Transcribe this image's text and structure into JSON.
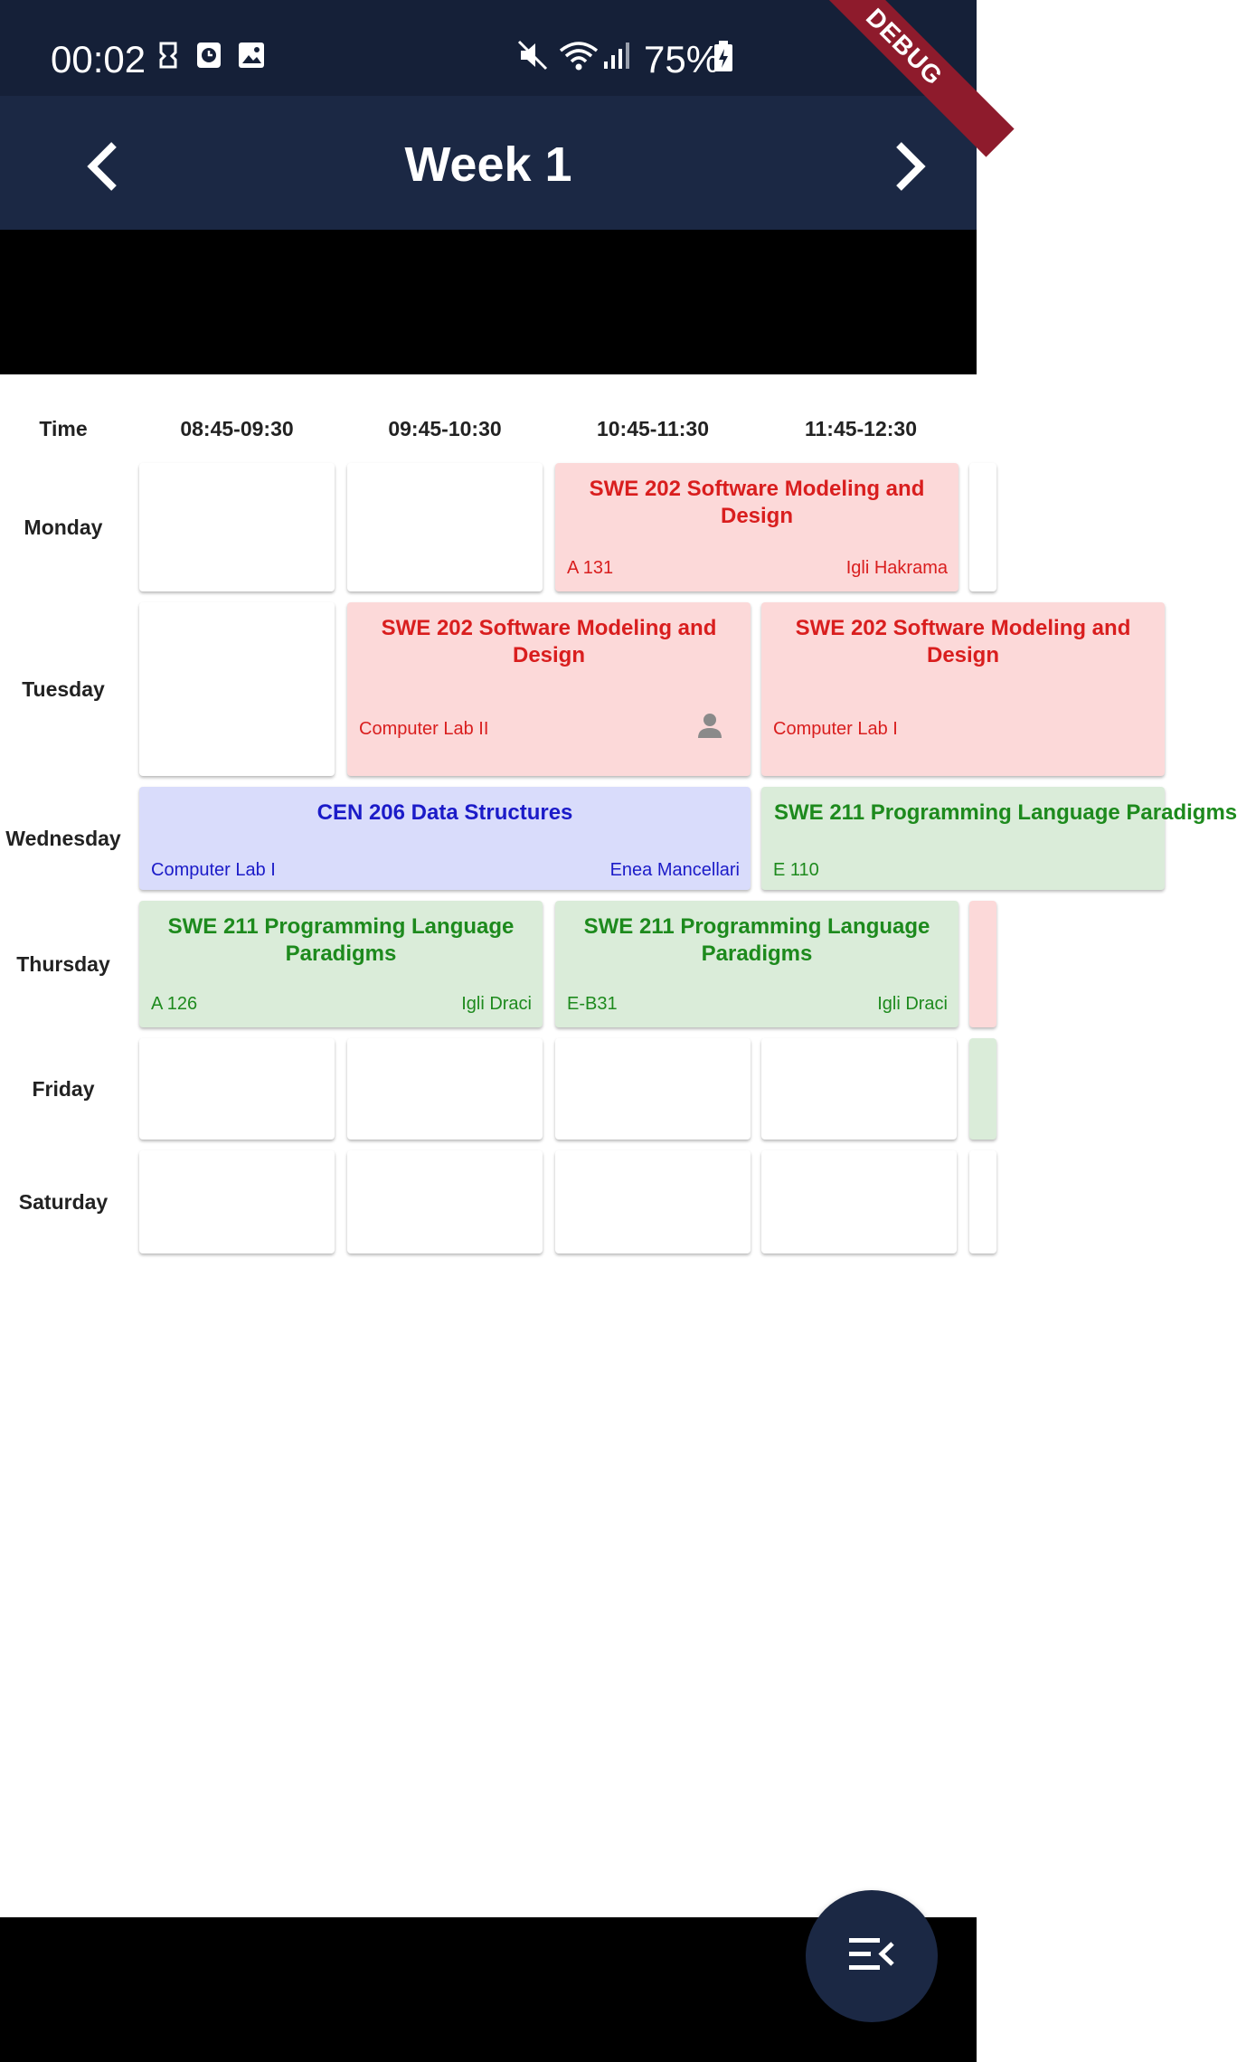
{
  "status_bar": {
    "time": "00:02",
    "battery": "75%",
    "icons": [
      "screenshot-icon",
      "clock-app-icon",
      "gallery-icon",
      "mute-icon",
      "wifi-icon",
      "signal-icon",
      "battery-charging-icon"
    ]
  },
  "debug_banner": "DEBUG",
  "app_bar": {
    "title": "Week 1",
    "prev_icon": "chevron-left-icon",
    "next_icon": "chevron-right-icon"
  },
  "timetable": {
    "time_header": "Time",
    "slots": [
      "08:45-09:30",
      "09:45-10:30",
      "10:45-11:30",
      "11:45-12:30"
    ],
    "days": [
      "Monday",
      "Tuesday",
      "Wednesday",
      "Thursday",
      "Friday",
      "Saturday"
    ],
    "classes": {
      "mon_swe202": {
        "title": "SWE 202 Software Modeling and Design",
        "room": "A 131",
        "teacher": "Igli Hakrama"
      },
      "tue_swe202_a": {
        "title": "SWE 202 Software Modeling and Design",
        "room": "Computer Lab II"
      },
      "tue_swe202_b": {
        "title": "SWE 202 Software Modeling and Design",
        "room": "Computer Lab I"
      },
      "wed_cen206": {
        "title": "CEN 206 Data Structures",
        "room": "Computer Lab I",
        "teacher": "Enea Mancellari"
      },
      "wed_swe211": {
        "title": "SWE 211 Programming Language Paradigms",
        "room": "E 110"
      },
      "thu_swe211_a": {
        "title": "SWE 211 Programming Language Paradigms",
        "room": "A 126",
        "teacher": "Igli Draci"
      },
      "thu_swe211_b": {
        "title": "SWE 211 Programming Language Paradigms",
        "room": "E-B31",
        "teacher": "Igli Draci"
      }
    },
    "colors": {
      "red": "#fcd9d9",
      "blue": "#d9dcfb",
      "green": "#daecd9"
    }
  },
  "fab_icon": "menu-open-icon"
}
